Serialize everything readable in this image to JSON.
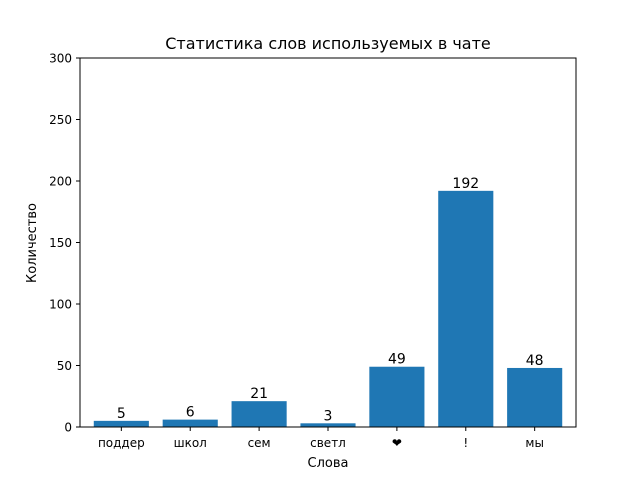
{
  "chart_data": {
    "type": "bar",
    "title": "Статистика слов используемых в чате",
    "xlabel": "Слова",
    "ylabel": "Количество",
    "categories": [
      "поддер",
      "школ",
      "сем",
      "светл",
      "❤",
      "!",
      "мы"
    ],
    "values": [
      5,
      6,
      21,
      3,
      49,
      192,
      48
    ],
    "data_labels": [
      "5",
      "6",
      "21",
      "3",
      "49",
      "192",
      "48"
    ],
    "ylim": [
      0,
      300
    ],
    "yticks": [
      0,
      50,
      100,
      150,
      200,
      250,
      300
    ],
    "grid": false,
    "legend": "none",
    "bar_color": "#1f77b4"
  }
}
